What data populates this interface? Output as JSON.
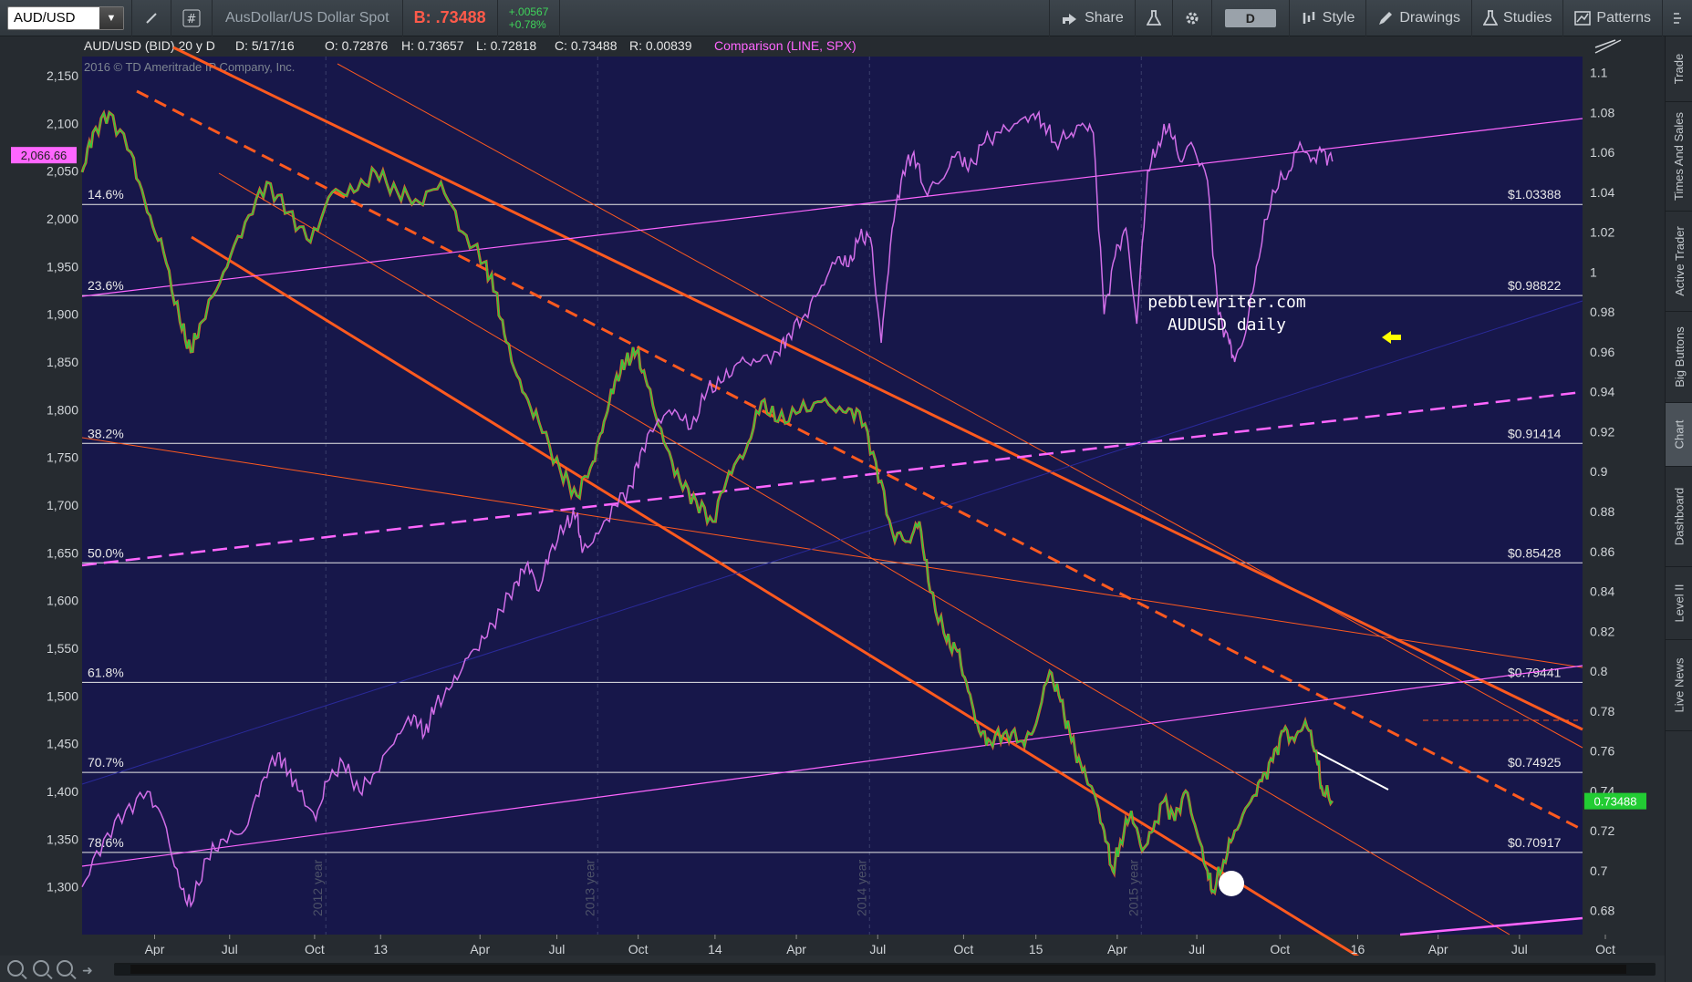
{
  "toolbar": {
    "symbol": "AUD/USD",
    "description": "AusDollar/US Dollar Spot",
    "bid": "B: .73488",
    "change": "+.00567",
    "change_pct": "+0.78%",
    "share_label": "Share",
    "aggregation": "D",
    "style_label": "Style",
    "drawings_label": "Drawings",
    "studies_label": "Studies",
    "patterns_label": "Patterns"
  },
  "header": {
    "title": "AUD/USD (BID) 20 y D",
    "date": "D: 5/17/16",
    "open": "O: 0.72876",
    "high": "H: 0.73657",
    "low": "L: 0.72818",
    "close": "C: 0.73488",
    "range": "R: 0.00839",
    "comparison": "Comparison (LINE, SPX)",
    "copyright": "2016 © TD Ameritrade IP Company, Inc."
  },
  "chart_data": {
    "type": "line",
    "title": "AUD/USD (BID) 20 y D",
    "annotation": [
      "pebblewriter.com",
      "AUDUSD daily"
    ],
    "x_ticks": [
      "Apr",
      "Jul",
      "Oct",
      "13",
      "Apr",
      "Jul",
      "Oct",
      "14",
      "Apr",
      "Jul",
      "Oct",
      "15",
      "Apr",
      "Jul",
      "Oct",
      "16",
      "Apr",
      "Jul",
      "Oct"
    ],
    "year_labels": [
      "2012 year",
      "2013 year",
      "2014 year",
      "2015 year"
    ],
    "left_axis": {
      "ticks": [
        "2,150",
        "2,100",
        "2,050",
        "2,000",
        "1,950",
        "1,900",
        "1,850",
        "1,800",
        "1,750",
        "1,700",
        "1,650",
        "1,600",
        "1,550",
        "1,500",
        "1,450",
        "1,400",
        "1,350",
        "1,300"
      ],
      "range": [
        1250,
        2170
      ],
      "current_label": "2,066.66",
      "current_color": "#ff66ff"
    },
    "right_axis": {
      "ticks": [
        "1.1",
        "1.08",
        "1.06",
        "1.04",
        "1.02",
        "1",
        "0.98",
        "0.96",
        "0.94",
        "0.92",
        "0.9",
        "0.88",
        "0.86",
        "0.84",
        "0.82",
        "0.8",
        "0.78",
        "0.76",
        "0.74",
        "0.72",
        "0.7",
        "0.68"
      ],
      "range": [
        0.668,
        1.108
      ],
      "current_label": "0.73488",
      "current_color": "#22cc33"
    },
    "fib_levels": [
      {
        "pct": "14.6%",
        "price": "$1.03388",
        "value": 1.03388
      },
      {
        "pct": "23.6%",
        "price": "$0.98822",
        "value": 0.98822
      },
      {
        "pct": "38.2%",
        "price": "$0.91414",
        "value": 0.91414
      },
      {
        "pct": "50.0%",
        "price": "$0.85428",
        "value": 0.85428
      },
      {
        "pct": "61.8%",
        "price": "$0.79441",
        "value": 0.79441
      },
      {
        "pct": "70.7%",
        "price": "$0.74925",
        "value": 0.74925
      },
      {
        "pct": "78.6%",
        "price": "$0.70917",
        "value": 0.70917
      }
    ],
    "series": [
      {
        "name": "AUD/USD",
        "axis": "right",
        "color": "#2ecc40",
        "points": [
          [
            0,
            1.05
          ],
          [
            0.01,
            1.07
          ],
          [
            0.025,
            1.08
          ],
          [
            0.045,
            1.06
          ],
          [
            0.06,
            1.03
          ],
          [
            0.075,
            1.01
          ],
          [
            0.09,
            0.975
          ],
          [
            0.1,
            0.96
          ],
          [
            0.11,
            0.975
          ],
          [
            0.13,
            1.0
          ],
          [
            0.15,
            1.025
          ],
          [
            0.17,
            1.045
          ],
          [
            0.19,
            1.03
          ],
          [
            0.21,
            1.015
          ],
          [
            0.23,
            1.04
          ],
          [
            0.25,
            1.04
          ],
          [
            0.27,
            1.05
          ],
          [
            0.29,
            1.04
          ],
          [
            0.31,
            1.035
          ],
          [
            0.33,
            1.045
          ],
          [
            0.35,
            1.02
          ],
          [
            0.37,
            1.005
          ],
          [
            0.38,
            0.99
          ],
          [
            0.39,
            0.965
          ],
          [
            0.405,
            0.94
          ],
          [
            0.42,
            0.925
          ],
          [
            0.44,
            0.9
          ],
          [
            0.455,
            0.888
          ],
          [
            0.47,
            0.905
          ],
          [
            0.48,
            0.925
          ],
          [
            0.49,
            0.945
          ],
          [
            0.5,
            0.955
          ],
          [
            0.51,
            0.96
          ],
          [
            0.52,
            0.943
          ],
          [
            0.535,
            0.915
          ],
          [
            0.55,
            0.895
          ],
          [
            0.565,
            0.885
          ],
          [
            0.58,
            0.875
          ],
          [
            0.595,
            0.9
          ],
          [
            0.61,
            0.91
          ],
          [
            0.625,
            0.935
          ],
          [
            0.64,
            0.925
          ],
          [
            0.66,
            0.93
          ],
          [
            0.68,
            0.935
          ],
          [
            0.7,
            0.93
          ],
          [
            0.715,
            0.93
          ],
          [
            0.73,
            0.905
          ],
          [
            0.745,
            0.87
          ],
          [
            0.76,
            0.865
          ],
          [
            0.77,
            0.875
          ],
          [
            0.78,
            0.84
          ],
          [
            0.795,
            0.815
          ],
          [
            0.805,
            0.81
          ],
          [
            0.815,
            0.79
          ],
          [
            0.825,
            0.77
          ],
          [
            0.835,
            0.765
          ],
          [
            0.85,
            0.77
          ],
          [
            0.865,
            0.765
          ],
          [
            0.875,
            0.77
          ],
          [
            0.89,
            0.8
          ],
          [
            0.9,
            0.785
          ],
          [
            0.91,
            0.765
          ],
          [
            0.92,
            0.75
          ],
          [
            0.93,
            0.74
          ],
          [
            0.94,
            0.72
          ],
          [
            0.948,
            0.7
          ],
          [
            0.955,
            0.715
          ],
          [
            0.965,
            0.73
          ],
          [
            0.975,
            0.71
          ],
          [
            0.985,
            0.72
          ],
          [
            0.995,
            0.735
          ],
          [
            1.005,
            0.725
          ],
          [
            1.015,
            0.74
          ],
          [
            1.025,
            0.72
          ],
          [
            1.035,
            0.7
          ],
          [
            1.04,
            0.69
          ],
          [
            1.05,
            0.705
          ],
          [
            1.06,
            0.72
          ],
          [
            1.075,
            0.735
          ],
          [
            1.085,
            0.745
          ],
          [
            1.095,
            0.755
          ],
          [
            1.105,
            0.77
          ],
          [
            1.115,
            0.765
          ],
          [
            1.125,
            0.775
          ],
          [
            1.135,
            0.76
          ],
          [
            1.14,
            0.742
          ],
          [
            1.15,
            0.735
          ]
        ]
      },
      {
        "name": "SPX",
        "axis": "left",
        "color": "#d16ee8",
        "points": [
          [
            0,
            1300
          ],
          [
            0.02,
            1350
          ],
          [
            0.04,
            1380
          ],
          [
            0.06,
            1400
          ],
          [
            0.075,
            1370
          ],
          [
            0.09,
            1300
          ],
          [
            0.1,
            1280
          ],
          [
            0.115,
            1330
          ],
          [
            0.13,
            1350
          ],
          [
            0.15,
            1360
          ],
          [
            0.165,
            1410
          ],
          [
            0.18,
            1440
          ],
          [
            0.19,
            1420
          ],
          [
            0.2,
            1400
          ],
          [
            0.215,
            1370
          ],
          [
            0.225,
            1410
          ],
          [
            0.24,
            1430
          ],
          [
            0.255,
            1400
          ],
          [
            0.27,
            1420
          ],
          [
            0.29,
            1460
          ],
          [
            0.305,
            1480
          ],
          [
            0.315,
            1460
          ],
          [
            0.325,
            1490
          ],
          [
            0.34,
            1510
          ],
          [
            0.355,
            1540
          ],
          [
            0.37,
            1560
          ],
          [
            0.385,
            1590
          ],
          [
            0.4,
            1620
          ],
          [
            0.41,
            1640
          ],
          [
            0.42,
            1610
          ],
          [
            0.43,
            1650
          ],
          [
            0.445,
            1680
          ],
          [
            0.455,
            1690
          ],
          [
            0.46,
            1650
          ],
          [
            0.475,
            1670
          ],
          [
            0.49,
            1700
          ],
          [
            0.505,
            1720
          ],
          [
            0.515,
            1760
          ],
          [
            0.53,
            1790
          ],
          [
            0.545,
            1800
          ],
          [
            0.56,
            1780
          ],
          [
            0.575,
            1820
          ],
          [
            0.59,
            1830
          ],
          [
            0.605,
            1850
          ],
          [
            0.62,
            1850
          ],
          [
            0.64,
            1860
          ],
          [
            0.65,
            1880
          ],
          [
            0.665,
            1900
          ],
          [
            0.68,
            1930
          ],
          [
            0.695,
            1960
          ],
          [
            0.705,
            1950
          ],
          [
            0.715,
            1980
          ],
          [
            0.725,
            1980
          ],
          [
            0.735,
            1870
          ],
          [
            0.745,
            1990
          ],
          [
            0.755,
            2050
          ],
          [
            0.765,
            2070
          ],
          [
            0.775,
            2030
          ],
          [
            0.79,
            2040
          ],
          [
            0.805,
            2070
          ],
          [
            0.815,
            2050
          ],
          [
            0.83,
            2080
          ],
          [
            0.845,
            2090
          ],
          [
            0.86,
            2100
          ],
          [
            0.875,
            2110
          ],
          [
            0.885,
            2100
          ],
          [
            0.895,
            2080
          ],
          [
            0.91,
            2090
          ],
          [
            0.92,
            2100
          ],
          [
            0.93,
            2090
          ],
          [
            0.94,
            1900
          ],
          [
            0.95,
            1960
          ],
          [
            0.96,
            1990
          ],
          [
            0.97,
            1890
          ],
          [
            0.98,
            2050
          ],
          [
            0.99,
            2080
          ],
          [
            1.0,
            2100
          ],
          [
            1.01,
            2060
          ],
          [
            1.02,
            2080
          ],
          [
            1.035,
            2040
          ],
          [
            1.045,
            1900
          ],
          [
            1.055,
            1870
          ],
          [
            1.06,
            1850
          ],
          [
            1.07,
            1880
          ],
          [
            1.08,
            1950
          ],
          [
            1.095,
            2030
          ],
          [
            1.11,
            2050
          ],
          [
            1.12,
            2080
          ],
          [
            1.13,
            2060
          ],
          [
            1.14,
            2070
          ],
          [
            1.15,
            2060
          ]
        ]
      }
    ],
    "legend": "none",
    "grid": true
  },
  "sidebar": {
    "items": [
      "Trade",
      "Times And Sales",
      "Active Trader",
      "Big Buttons",
      "Chart",
      "Dashboard",
      "Level II",
      "Live News"
    ]
  }
}
